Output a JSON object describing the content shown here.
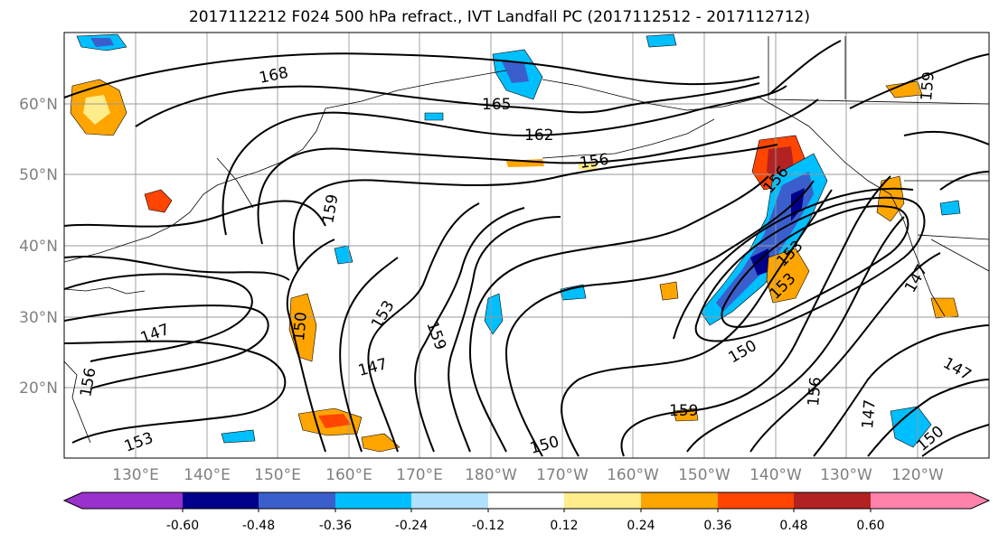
{
  "title": "2017112212 F024 500 hPa refract., IVT Landfall PC (2017112512 - 2017112712)",
  "lat_labels": [
    "60°N",
    "50°N",
    "40°N",
    "30°N",
    "20°N"
  ],
  "lon_labels": [
    "130°E",
    "140°E",
    "150°E",
    "160°E",
    "170°E",
    "180°W",
    "170°W",
    "160°W",
    "150°W",
    "140°W",
    "130°W",
    "120°W"
  ],
  "colorbar": {
    "colors": [
      "#9932cc",
      "#00008b",
      "#3a5fcd",
      "#00bfff",
      "#b0e2ff",
      "#ffffff",
      "#ffec8b",
      "#ffa500",
      "#ff4500",
      "#b22222",
      "#ff82ab"
    ],
    "tick_labels": [
      "-0.60",
      "-0.48",
      "-0.36",
      "-0.24",
      "-0.12",
      "0.12",
      "0.24",
      "0.36",
      "0.48",
      "0.60"
    ]
  },
  "contour_labels": [
    {
      "text": "168"
    },
    {
      "text": "165"
    },
    {
      "text": "162"
    },
    {
      "text": "156"
    },
    {
      "text": "159"
    },
    {
      "text": "147"
    },
    {
      "text": "150"
    },
    {
      "text": "153"
    },
    {
      "text": "159"
    },
    {
      "text": "147"
    },
    {
      "text": "150"
    },
    {
      "text": "159"
    },
    {
      "text": "150"
    },
    {
      "text": "153"
    },
    {
      "text": "153"
    },
    {
      "text": "156"
    },
    {
      "text": "147"
    },
    {
      "text": "150"
    },
    {
      "text": "147"
    },
    {
      "text": "156"
    },
    {
      "text": "159"
    },
    {
      "text": "147"
    },
    {
      "text": "156"
    },
    {
      "text": "153"
    }
  ]
}
